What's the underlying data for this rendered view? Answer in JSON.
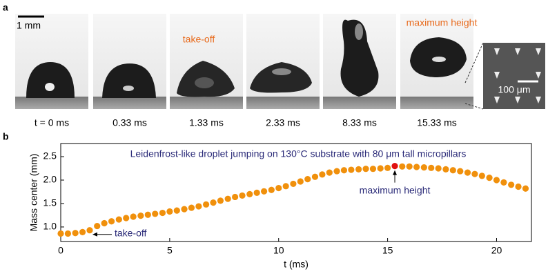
{
  "panel_a": {
    "label": "a",
    "scale_bar": "1 mm",
    "take_off_label": "take-off",
    "max_height_label": "maximum height",
    "inset_scale_bar": "100 μm",
    "frame_times": [
      "t = 0 ms",
      "0.33 ms",
      "1.33 ms",
      "2.33 ms",
      "8.33 ms",
      "15.33 ms"
    ]
  },
  "chart_data": {
    "type": "scatter",
    "panel_label": "b",
    "title": "Leidenfrost-like droplet jumping on 130°C substrate with 80 μm tall micropillars",
    "x_label": "t (ms)",
    "y_label": "Mass center (mm)",
    "xlim": [
      0,
      21.6
    ],
    "ylim": [
      0.69,
      2.78
    ],
    "xticks": [
      0,
      5,
      10,
      15,
      20
    ],
    "yticks": [
      {
        "value": 1,
        "label": "1.0"
      },
      1.5,
      {
        "value": 2,
        "label": "2.0"
      },
      2.5
    ],
    "series": [
      {
        "color": "#f0900c",
        "x": [
          0,
          0.33,
          0.67,
          1,
          1.33,
          1.67,
          2,
          2.33,
          2.67,
          3,
          3.33,
          3.67,
          4,
          4.33,
          4.67,
          5,
          5.33,
          5.67,
          6,
          6.33,
          6.67,
          7,
          7.33,
          7.67,
          8,
          8.33,
          8.67,
          9,
          9.33,
          9.67,
          10,
          10.33,
          10.67,
          11,
          11.33,
          11.67,
          12,
          12.33,
          12.67,
          13,
          13.33,
          13.67,
          14,
          14.33,
          14.67,
          15,
          15.33,
          15.67,
          16,
          16.33,
          16.67,
          17,
          17.33,
          17.67,
          18,
          18.33,
          18.67,
          19,
          19.33,
          19.67,
          20,
          20.33,
          20.67,
          21,
          21.33
        ],
        "values": [
          0.86,
          0.86,
          0.87,
          0.89,
          0.93,
          1.02,
          1.08,
          1.12,
          1.16,
          1.19,
          1.22,
          1.24,
          1.26,
          1.28,
          1.3,
          1.33,
          1.35,
          1.38,
          1.41,
          1.44,
          1.48,
          1.52,
          1.56,
          1.6,
          1.64,
          1.67,
          1.7,
          1.73,
          1.76,
          1.79,
          1.83,
          1.87,
          1.92,
          1.97,
          2.02,
          2.07,
          2.12,
          2.16,
          2.19,
          2.21,
          2.22,
          2.23,
          2.24,
          2.24,
          2.25,
          2.26,
          2.3,
          2.29,
          2.29,
          2.28,
          2.27,
          2.26,
          2.25,
          2.23,
          2.21,
          2.19,
          2.16,
          2.13,
          2.09,
          2.05,
          2,
          1.95,
          1.9,
          1.86,
          1.82
        ]
      }
    ],
    "highlight": {
      "index": 46,
      "color": "#e01010"
    },
    "annotations": [
      {
        "text": "take-off",
        "x": 1.33,
        "y": 0.9
      },
      {
        "text": "maximum height",
        "x": 15.33,
        "y": 2.3
      }
    ]
  }
}
